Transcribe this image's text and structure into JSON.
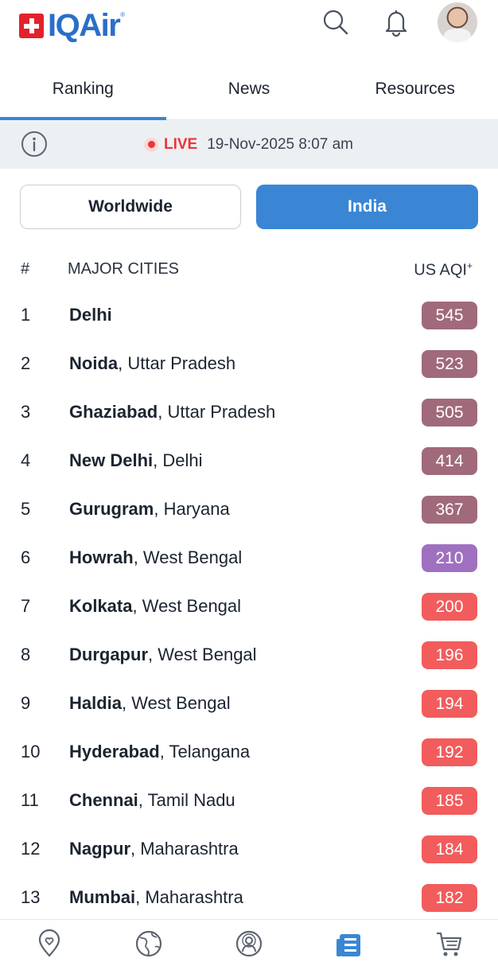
{
  "header": {
    "brand": "IQAir",
    "brand_mark": "®",
    "icons": {
      "search": "search-icon",
      "notifications": "bell-icon",
      "avatar": "user-avatar"
    }
  },
  "tabs": [
    {
      "label": "Ranking",
      "active": true
    },
    {
      "label": "News",
      "active": false
    },
    {
      "label": "Resources",
      "active": false
    }
  ],
  "live_bar": {
    "live_label": "LIVE",
    "timestamp": "19-Nov-2025 8:07 am"
  },
  "segments": {
    "worldwide": "Worldwide",
    "india": "India",
    "selected": "India"
  },
  "table": {
    "col_rank": "#",
    "col_city": "MAJOR CITIES",
    "col_aqi": "US AQI",
    "col_aqi_sup": "+",
    "rows": [
      {
        "rank": "1",
        "city": "Delhi",
        "region": "",
        "aqi": "545",
        "color": "#a06a7b"
      },
      {
        "rank": "2",
        "city": "Noida",
        "region": ", Uttar Pradesh",
        "aqi": "523",
        "color": "#a06a7b"
      },
      {
        "rank": "3",
        "city": "Ghaziabad",
        "region": ", Uttar Pradesh",
        "aqi": "505",
        "color": "#a06a7b"
      },
      {
        "rank": "4",
        "city": "New Delhi",
        "region": ", Delhi",
        "aqi": "414",
        "color": "#a06a7b"
      },
      {
        "rank": "5",
        "city": "Gurugram",
        "region": ", Haryana",
        "aqi": "367",
        "color": "#a06a7b"
      },
      {
        "rank": "6",
        "city": "Howrah",
        "region": ", West Bengal",
        "aqi": "210",
        "color": "#a070c0"
      },
      {
        "rank": "7",
        "city": "Kolkata",
        "region": ", West Bengal",
        "aqi": "200",
        "color": "#f25c5c"
      },
      {
        "rank": "8",
        "city": "Durgapur",
        "region": ", West Bengal",
        "aqi": "196",
        "color": "#f25c5c"
      },
      {
        "rank": "9",
        "city": "Haldia",
        "region": ", West Bengal",
        "aqi": "194",
        "color": "#f25c5c"
      },
      {
        "rank": "10",
        "city": "Hyderabad",
        "region": ", Telangana",
        "aqi": "192",
        "color": "#f25c5c"
      },
      {
        "rank": "11",
        "city": "Chennai",
        "region": ", Tamil Nadu",
        "aqi": "185",
        "color": "#f25c5c"
      },
      {
        "rank": "12",
        "city": "Nagpur",
        "region": ", Maharashtra",
        "aqi": "184",
        "color": "#f25c5c"
      },
      {
        "rank": "13",
        "city": "Mumbai",
        "region": ", Maharashtra",
        "aqi": "182",
        "color": "#f25c5c"
      }
    ]
  },
  "bottom_nav": {
    "items": [
      "location-pin-icon",
      "globe-icon",
      "air-monitor-icon",
      "ranking-list-icon",
      "cart-icon"
    ],
    "active": "ranking-list-icon",
    "active_color": "#3a86d4",
    "inactive_color": "#5b6470"
  }
}
